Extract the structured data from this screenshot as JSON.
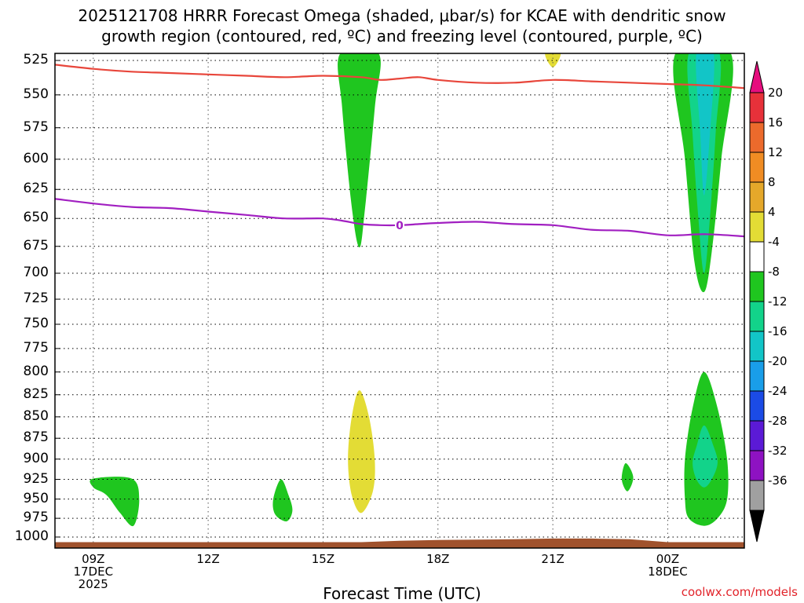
{
  "chart_data": {
    "type": "contour",
    "title_line1": "2025121708 HRRR Forecast Omega (shaded, μbar/s) for KCAE with dendritic snow",
    "title_line2": "growth region (contoured, red, ºC) and freezing level (contoured, purple, ºC)",
    "xlabel": "Forecast Time (UTC)",
    "credit": "coolwx.com/models",
    "xlim": [
      8,
      26
    ],
    "ylim": [
      520,
      1015
    ],
    "y_ticks": [
      "525",
      "550",
      "575",
      "600",
      "625",
      "650",
      "675",
      "700",
      "725",
      "750",
      "775",
      "800",
      "825",
      "850",
      "875",
      "900",
      "925",
      "950",
      "975",
      "1000"
    ],
    "x_ticks": [
      {
        "x": 9,
        "label": "09Z",
        "sub": [
          "17DEC",
          "2025"
        ]
      },
      {
        "x": 12,
        "label": "12Z",
        "sub": []
      },
      {
        "x": 15,
        "label": "15Z",
        "sub": []
      },
      {
        "x": 18,
        "label": "18Z",
        "sub": []
      },
      {
        "x": 21,
        "label": "21Z",
        "sub": []
      },
      {
        "x": 24,
        "label": "00Z",
        "sub": [
          "18DEC"
        ]
      }
    ],
    "colorbar_labels": [
      "20",
      "16",
      "12",
      "8",
      "4",
      "-4",
      "-8",
      "-12",
      "-16",
      "-20",
      "-24",
      "-28",
      "-32",
      "-36"
    ],
    "colorbar_colors": [
      "#e60e7e",
      "#e7313a",
      "#ec6a2c",
      "#f08c23",
      "#e5a82a",
      "#e3dc35",
      "#ffffff",
      "#1fc61f",
      "#12d38a",
      "#12c5c7",
      "#199ee9",
      "#1b4be6",
      "#5b1ad6",
      "#8e12c2",
      "#a0a0a0",
      "#000000"
    ],
    "dgz_line_temp": "-12",
    "freezing_line_label": "0",
    "dgz_line": {
      "color": "#e8463b",
      "x": [
        8,
        9,
        10,
        11,
        12,
        13,
        14,
        15,
        16,
        16.5,
        17,
        17.5,
        18,
        19,
        20,
        21,
        22,
        23,
        24,
        25,
        26
      ],
      "p": [
        528,
        531,
        533,
        534,
        535,
        536,
        537,
        536,
        537,
        539,
        538,
        537,
        539,
        541,
        541,
        539,
        540,
        541,
        542,
        543,
        545
      ]
    },
    "freezing_line": {
      "color": "#a11fc1",
      "x": [
        8,
        9,
        10,
        11,
        12,
        13,
        14,
        15,
        15.5,
        16,
        16.5,
        17,
        17.5,
        18,
        19,
        20,
        21,
        22,
        23,
        24,
        25,
        26
      ],
      "p": [
        633,
        637,
        640,
        641,
        644,
        647,
        650,
        650,
        652,
        655,
        656,
        656,
        655,
        654,
        653,
        655,
        656,
        660,
        661,
        665,
        664,
        666
      ]
    },
    "omega_regions": [
      {
        "level": "green",
        "color": "#1fc61f",
        "points": [
          [
            15.45,
            520
          ],
          [
            16.45,
            520
          ],
          [
            16.35,
            560
          ],
          [
            16.1,
            640
          ],
          [
            15.95,
            676
          ],
          [
            15.75,
            640
          ],
          [
            15.5,
            560
          ]
        ]
      },
      {
        "level": "green",
        "color": "#1fc61f",
        "points": [
          [
            9,
            924
          ],
          [
            10,
            924
          ],
          [
            10.2,
            950
          ],
          [
            10.05,
            985
          ],
          [
            9.7,
            968
          ],
          [
            9.35,
            945
          ],
          [
            9,
            935
          ]
        ]
      },
      {
        "level": "green",
        "color": "#1fc61f",
        "points": [
          [
            13.9,
            925
          ],
          [
            14.1,
            945
          ],
          [
            14.2,
            965
          ],
          [
            14.05,
            979
          ],
          [
            13.75,
            970
          ],
          [
            13.7,
            950
          ]
        ]
      },
      {
        "level": "green",
        "color": "#1fc61f",
        "points": [
          [
            22.9,
            905
          ],
          [
            23.1,
            922
          ],
          [
            22.95,
            940
          ],
          [
            22.8,
            925
          ]
        ]
      },
      {
        "level": "green",
        "color": "#1fc61f",
        "points": [
          [
            24.2,
            520
          ],
          [
            25.65,
            520
          ],
          [
            25.4,
            600
          ],
          [
            25.15,
            680
          ],
          [
            24.95,
            718
          ],
          [
            24.7,
            690
          ],
          [
            24.45,
            600
          ]
        ]
      },
      {
        "level": "teal",
        "color": "#12d38a",
        "points": [
          [
            24.55,
            520
          ],
          [
            25.35,
            520
          ],
          [
            25.25,
            580
          ],
          [
            25.1,
            650
          ],
          [
            24.95,
            700
          ],
          [
            24.8,
            650
          ],
          [
            24.65,
            580
          ]
        ]
      },
      {
        "level": "cyan",
        "color": "#12c5c7",
        "points": [
          [
            24.75,
            520
          ],
          [
            25.2,
            520
          ],
          [
            25.1,
            580
          ],
          [
            24.95,
            630
          ],
          [
            24.85,
            580
          ]
        ]
      },
      {
        "level": "green",
        "color": "#1fc61f",
        "points": [
          [
            24.95,
            800
          ],
          [
            25.3,
            840
          ],
          [
            25.55,
            900
          ],
          [
            25.55,
            950
          ],
          [
            25.3,
            975
          ],
          [
            24.95,
            985
          ],
          [
            24.55,
            975
          ],
          [
            24.45,
            950
          ],
          [
            24.45,
            900
          ],
          [
            24.65,
            840
          ]
        ]
      },
      {
        "level": "teal",
        "color": "#12d38a",
        "points": [
          [
            24.95,
            860
          ],
          [
            25.2,
            885
          ],
          [
            25.3,
            905
          ],
          [
            25.15,
            925
          ],
          [
            24.95,
            935
          ],
          [
            24.75,
            925
          ],
          [
            24.65,
            905
          ],
          [
            24.75,
            885
          ]
        ]
      },
      {
        "level": "yellow",
        "color": "#e3dc35",
        "points": [
          [
            15.95,
            820
          ],
          [
            16.2,
            850
          ],
          [
            16.35,
            900
          ],
          [
            16.3,
            940
          ],
          [
            16.0,
            968
          ],
          [
            15.75,
            945
          ],
          [
            15.65,
            900
          ],
          [
            15.75,
            850
          ]
        ]
      },
      {
        "level": "yellow",
        "color": "#e3dc35",
        "points": [
          [
            20.8,
            520
          ],
          [
            21.2,
            520
          ],
          [
            21.0,
            530
          ]
        ]
      }
    ],
    "terrain": {
      "color": "#a0522d",
      "x": [
        8,
        16,
        17,
        18,
        20,
        21,
        22,
        23,
        24,
        25,
        26
      ],
      "p": [
        1007,
        1007,
        1005,
        1004,
        1003,
        1002,
        1002,
        1003,
        1007,
        1007,
        1007
      ]
    }
  }
}
